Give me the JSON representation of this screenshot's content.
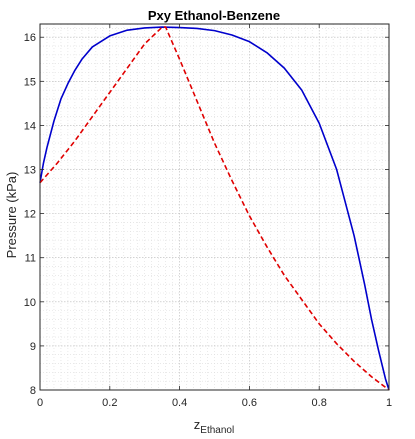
{
  "chart_data": {
    "type": "line",
    "title": "Pxy Ethanol-Benzene",
    "xlabel_main": "z",
    "xlabel_sub": "Ethanol",
    "ylabel": "Pressure (kPa)",
    "xlim": [
      0,
      1
    ],
    "ylim": [
      8,
      16.3
    ],
    "x_ticks": [
      0,
      0.2,
      0.4,
      0.6,
      0.8,
      1
    ],
    "x_tick_labels": [
      "0",
      "0.2",
      "0.4",
      "0.6",
      "0.8",
      "1"
    ],
    "y_ticks": [
      8,
      9,
      10,
      11,
      12,
      13,
      14,
      15,
      16
    ],
    "y_tick_labels": [
      "8",
      "9",
      "10",
      "11",
      "12",
      "13",
      "14",
      "15",
      "16"
    ],
    "grid": "major and minor, dotted",
    "legend": "none",
    "series": [
      {
        "line": "solid",
        "color": "#0000cc",
        "x": [
          0,
          0.01,
          0.02,
          0.04,
          0.06,
          0.08,
          0.1,
          0.12,
          0.15,
          0.2,
          0.25,
          0.3,
          0.35,
          0.4,
          0.45,
          0.5,
          0.55,
          0.6,
          0.65,
          0.7,
          0.75,
          0.8,
          0.85,
          0.9,
          0.93,
          0.95,
          0.97,
          0.99,
          1
        ],
        "y": [
          12.7,
          13.15,
          13.5,
          14.1,
          14.6,
          14.95,
          15.25,
          15.5,
          15.78,
          16.03,
          16.16,
          16.21,
          16.23,
          16.22,
          16.2,
          16.15,
          16.05,
          15.9,
          15.65,
          15.3,
          14.8,
          14.05,
          13.0,
          11.5,
          10.4,
          9.6,
          8.9,
          8.25,
          8.0
        ]
      },
      {
        "line": "dashed",
        "color": "#e00000",
        "x": [
          0,
          0.05,
          0.1,
          0.15,
          0.2,
          0.25,
          0.3,
          0.35,
          0.36,
          0.4,
          0.45,
          0.5,
          0.55,
          0.6,
          0.65,
          0.7,
          0.75,
          0.8,
          0.85,
          0.9,
          0.95,
          1
        ],
        "y": [
          12.7,
          13.15,
          13.65,
          14.2,
          14.75,
          15.3,
          15.85,
          16.23,
          16.23,
          15.5,
          14.55,
          13.6,
          12.75,
          11.95,
          11.25,
          10.6,
          10.05,
          9.5,
          9.05,
          8.65,
          8.3,
          8.0
        ]
      }
    ]
  }
}
